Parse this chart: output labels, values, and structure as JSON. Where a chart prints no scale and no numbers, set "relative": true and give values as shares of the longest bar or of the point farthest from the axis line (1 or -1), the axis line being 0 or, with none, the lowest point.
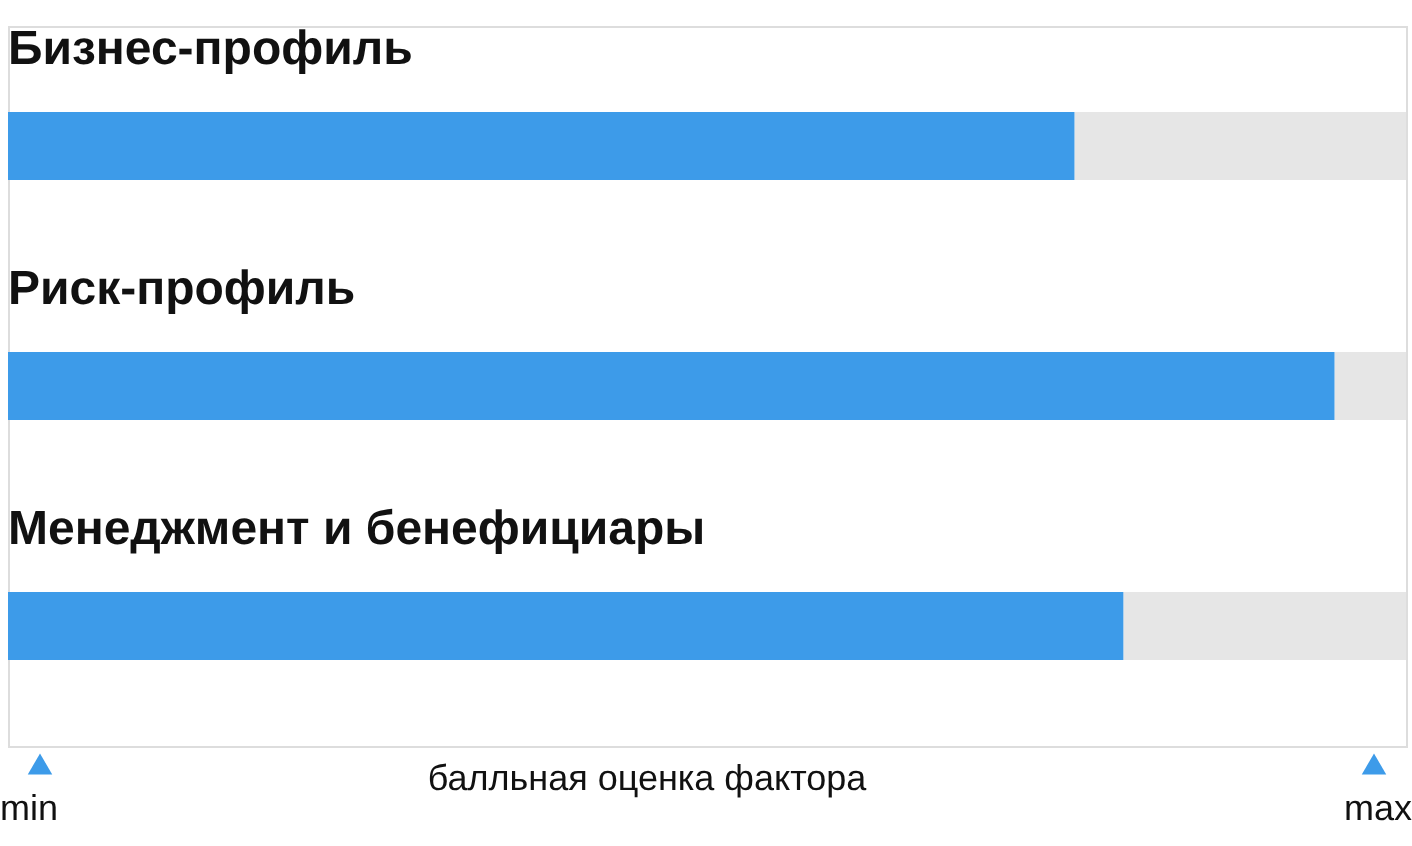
{
  "chart_data": {
    "type": "bar",
    "orientation": "horizontal",
    "stacked": true,
    "relative": true,
    "xlabel": "балльная оценка фактора",
    "categories": [
      "Бизнес-профиль",
      "Риск-профиль",
      "Менеджмент и бенефициары"
    ],
    "series": [
      {
        "color": "#3d9be9",
        "values": [
          0.763,
          0.949,
          0.798
        ]
      },
      {
        "color": "#e6e6e6",
        "values": [
          0.237,
          0.051,
          0.202
        ]
      }
    ],
    "annotations": [
      "min",
      "max"
    ]
  }
}
